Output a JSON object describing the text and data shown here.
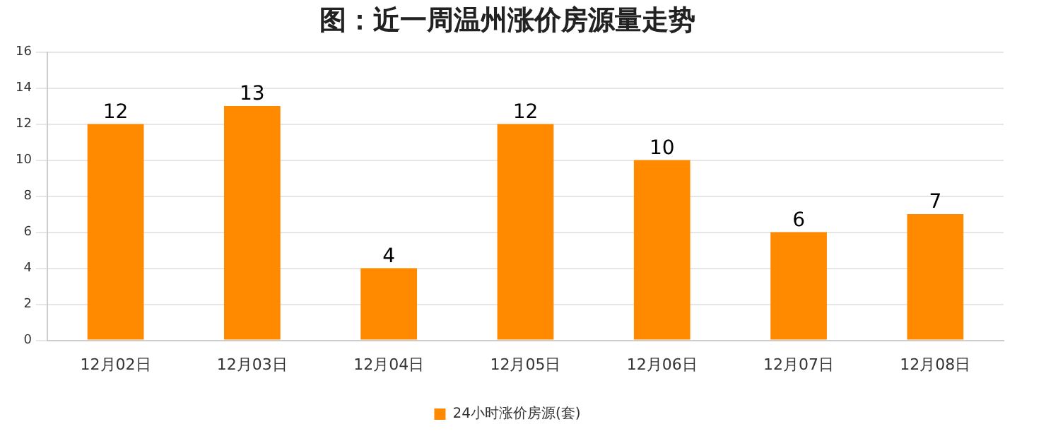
{
  "chart_data": {
    "type": "bar",
    "title": "图：近一周温州涨价房源量走势",
    "categories": [
      "12月02日",
      "12月03日",
      "12月04日",
      "12月05日",
      "12月06日",
      "12月07日",
      "12月08日"
    ],
    "series": [
      {
        "name": "24小时涨价房源(套)",
        "color": "#ff8a00",
        "values": [
          12,
          13,
          4,
          12,
          10,
          6,
          7
        ]
      }
    ],
    "ylim": [
      0,
      16
    ],
    "yticks": [
      0,
      2,
      4,
      6,
      8,
      10,
      12,
      14,
      16
    ],
    "grid": "y",
    "legend": "bottom",
    "data_labels": true
  }
}
